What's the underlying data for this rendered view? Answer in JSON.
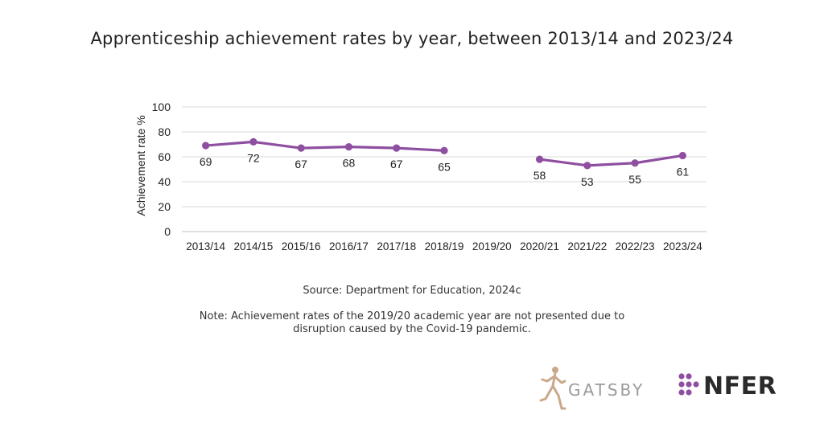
{
  "title": "Apprenticeship achievement rates by year, between 2013/14 and 2023/24",
  "source": "Source: Department for Education, 2024c",
  "note_line1": "Note: Achievement rates of the 2019/20 academic year are not presented due to",
  "note_line2": "disruption caused by the Covid-19 pandemic.",
  "logos": {
    "gatsby": "GATSBY",
    "nfer": "NFER"
  },
  "colors": {
    "series": "#8e4fa0",
    "grid": "#d9d9d9",
    "text": "#222222"
  },
  "chart_data": {
    "type": "line",
    "title": "",
    "xlabel": "",
    "ylabel": "Achievement rate %",
    "ylim": [
      0,
      100
    ],
    "yticks": [
      0,
      20,
      40,
      60,
      80,
      100
    ],
    "grid": true,
    "categories": [
      "2013/14",
      "2014/15",
      "2015/16",
      "2016/17",
      "2017/18",
      "2018/19",
      "2019/20",
      "2020/21",
      "2021/22",
      "2022/23",
      "2023/24"
    ],
    "series": [
      {
        "values": [
          69,
          72,
          67,
          68,
          67,
          65,
          null,
          58,
          53,
          55,
          61
        ],
        "display_values": [
          69,
          72,
          67,
          68,
          67,
          65,
          null,
          58,
          53,
          55,
          61
        ]
      }
    ]
  }
}
